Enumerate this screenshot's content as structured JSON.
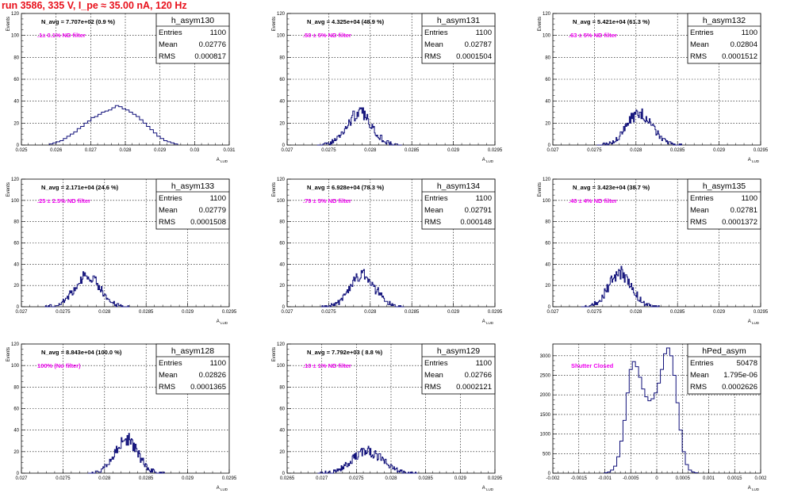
{
  "page": {
    "run_title": "run 3586,   335 V, I_pe ≈ 35.00 nA, 120 Hz"
  },
  "colors": {
    "histogram_line": "#10107a",
    "filter_label": "#ee00ee",
    "run_title": "#e8101b",
    "grid": "#000000"
  },
  "chart_data": [
    {
      "type": "bar",
      "title": "h_asym130",
      "xlabel": "A_LUD",
      "ylabel": "Events",
      "nominal_x": 0.02776,
      "xlim": [
        0.025,
        0.031
      ],
      "xticks": [
        0.025,
        0.026,
        0.027,
        0.028,
        0.029,
        0.03,
        0.031
      ],
      "xticklabels": [
        "0.025",
        "0.026",
        "0.027",
        "0.028",
        "0.029",
        "0.03",
        "0.031"
      ],
      "ylim": [
        0,
        120
      ],
      "yticks": [
        0,
        20,
        40,
        60,
        80,
        100,
        120
      ],
      "grid": true,
      "navg": "N_avg = 7.707e+02 (0.9 %)",
      "filter": ".1± 0.1% ND filter",
      "stats": {
        "entries": "1100",
        "mean": "0.02776",
        "rms": "0.000817"
      },
      "bins": [
        {
          "x": 0.02586,
          "y": 1
        },
        {
          "x": 0.02596,
          "y": 2
        },
        {
          "x": 0.02606,
          "y": 3
        },
        {
          "x": 0.02616,
          "y": 4
        },
        {
          "x": 0.02626,
          "y": 6
        },
        {
          "x": 0.02636,
          "y": 8
        },
        {
          "x": 0.02646,
          "y": 10
        },
        {
          "x": 0.02656,
          "y": 12
        },
        {
          "x": 0.02666,
          "y": 15
        },
        {
          "x": 0.02676,
          "y": 17
        },
        {
          "x": 0.02686,
          "y": 20
        },
        {
          "x": 0.02696,
          "y": 22
        },
        {
          "x": 0.02706,
          "y": 25
        },
        {
          "x": 0.02716,
          "y": 26
        },
        {
          "x": 0.02726,
          "y": 28
        },
        {
          "x": 0.02736,
          "y": 30
        },
        {
          "x": 0.02746,
          "y": 31
        },
        {
          "x": 0.02756,
          "y": 32
        },
        {
          "x": 0.02766,
          "y": 34
        },
        {
          "x": 0.02776,
          "y": 36
        },
        {
          "x": 0.02786,
          "y": 35
        },
        {
          "x": 0.02796,
          "y": 33
        },
        {
          "x": 0.02806,
          "y": 32
        },
        {
          "x": 0.02816,
          "y": 30
        },
        {
          "x": 0.02826,
          "y": 28
        },
        {
          "x": 0.02836,
          "y": 26
        },
        {
          "x": 0.02846,
          "y": 23
        },
        {
          "x": 0.02856,
          "y": 20
        },
        {
          "x": 0.02866,
          "y": 17
        },
        {
          "x": 0.02876,
          "y": 14
        },
        {
          "x": 0.02886,
          "y": 11
        },
        {
          "x": 0.02896,
          "y": 8
        },
        {
          "x": 0.02906,
          "y": 6
        },
        {
          "x": 0.02916,
          "y": 4
        },
        {
          "x": 0.02926,
          "y": 3
        },
        {
          "x": 0.02936,
          "y": 2
        },
        {
          "x": 0.02946,
          "y": 1
        }
      ]
    },
    {
      "type": "bar",
      "title": "h_asym131",
      "xlabel": "A_LUD",
      "ylabel": "Events",
      "nominal_x": 0.02787,
      "xlim": [
        0.027,
        0.0295
      ],
      "xticks": [
        0.027,
        0.0275,
        0.028,
        0.0285,
        0.029,
        0.0295
      ],
      "xticklabels": [
        "0.027",
        "0.0275",
        "0.028",
        "0.0285",
        "0.029",
        "0.0295"
      ],
      "ylim": [
        0,
        120
      ],
      "yticks": [
        0,
        20,
        40,
        60,
        80,
        100,
        120
      ],
      "grid": true,
      "navg": "N_avg = 4.325e+04 (48.9 %)",
      "filter": ".50 ± 5% ND filter",
      "stats": {
        "entries": "1100",
        "mean": "0.02787",
        "rms": "0.0001504"
      }
    },
    {
      "type": "bar",
      "title": "h_asym132",
      "xlabel": "A_LUD",
      "ylabel": "Events",
      "nominal_x": 0.02804,
      "xlim": [
        0.027,
        0.0295
      ],
      "xticks": [
        0.027,
        0.0275,
        0.028,
        0.0285,
        0.029,
        0.0295
      ],
      "xticklabels": [
        "0.027",
        "0.0275",
        "0.028",
        "0.0285",
        "0.029",
        "0.0295"
      ],
      "ylim": [
        0,
        120
      ],
      "yticks": [
        0,
        20,
        40,
        60,
        80,
        100,
        120
      ],
      "grid": true,
      "navg": "N_avg = 5.421e+04 (61.3 %)",
      "filter": ".63 ± 5% ND filter",
      "stats": {
        "entries": "1100",
        "mean": "0.02804",
        "rms": "0.0001512"
      }
    },
    {
      "type": "bar",
      "title": "h_asym133",
      "xlabel": "A_LUD",
      "ylabel": "Events",
      "nominal_x": 0.02779,
      "xlim": [
        0.027,
        0.0295
      ],
      "xticks": [
        0.027,
        0.0275,
        0.028,
        0.0285,
        0.029,
        0.0295
      ],
      "xticklabels": [
        "0.027",
        "0.0275",
        "0.028",
        "0.0285",
        "0.029",
        "0.0295"
      ],
      "ylim": [
        0,
        120
      ],
      "yticks": [
        0,
        20,
        40,
        60,
        80,
        100,
        120
      ],
      "grid": true,
      "navg": "N_avg = 2.171e+04 (24.6 %)",
      "filter": ".25 ± 2.5% ND filter",
      "stats": {
        "entries": "1100",
        "mean": "0.02779",
        "rms": "0.0001508"
      }
    },
    {
      "type": "bar",
      "title": "h_asym134",
      "xlabel": "A_LUD",
      "ylabel": "Events",
      "nominal_x": 0.02791,
      "xlim": [
        0.027,
        0.0295
      ],
      "xticks": [
        0.027,
        0.0275,
        0.028,
        0.0285,
        0.029,
        0.0295
      ],
      "xticklabels": [
        "0.027",
        "0.0275",
        "0.028",
        "0.0285",
        "0.029",
        "0.0295"
      ],
      "ylim": [
        0,
        120
      ],
      "yticks": [
        0,
        20,
        40,
        60,
        80,
        100,
        120
      ],
      "grid": true,
      "navg": "N_avg = 6.928e+04 (78.3 %)",
      "filter": ".79 ± 5% ND filter",
      "stats": {
        "entries": "1100",
        "mean": "0.02791",
        "rms": "0.000148"
      }
    },
    {
      "type": "bar",
      "title": "h_asym135",
      "xlabel": "A_LUD",
      "ylabel": "Events",
      "nominal_x": 0.02781,
      "xlim": [
        0.027,
        0.0295
      ],
      "xticks": [
        0.027,
        0.0275,
        0.028,
        0.0285,
        0.029,
        0.0295
      ],
      "xticklabels": [
        "0.027",
        "0.0275",
        "0.028",
        "0.0285",
        "0.029",
        "0.0295"
      ],
      "ylim": [
        0,
        120
      ],
      "yticks": [
        0,
        20,
        40,
        60,
        80,
        100,
        120
      ],
      "grid": true,
      "navg": "N_avg = 3.423e+04 (38.7 %)",
      "filter": ".40 ± 4% ND filter",
      "stats": {
        "entries": "1100",
        "mean": "0.02781",
        "rms": "0.0001372"
      }
    },
    {
      "type": "bar",
      "title": "h_asym128",
      "xlabel": "A_LUD",
      "ylabel": "Events",
      "nominal_x": 0.02826,
      "xlim": [
        0.027,
        0.0295
      ],
      "xticks": [
        0.027,
        0.0275,
        0.028,
        0.0285,
        0.029,
        0.0295
      ],
      "xticklabels": [
        "0.027",
        "0.0275",
        "0.028",
        "0.0285",
        "0.029",
        "0.0295"
      ],
      "ylim": [
        0,
        120
      ],
      "yticks": [
        0,
        20,
        40,
        60,
        80,
        100,
        120
      ],
      "grid": true,
      "navg": "N_avg = 8.843e+04 (100.0 %)",
      "filter": "100% (No filter)",
      "stats": {
        "entries": "1100",
        "mean": "0.02826",
        "rms": "0.0001365"
      }
    },
    {
      "type": "bar",
      "title": "h_asym129",
      "xlabel": "A_LUD",
      "ylabel": "Events",
      "nominal_x": 0.02766,
      "xlim": [
        0.0265,
        0.0295
      ],
      "xticks": [
        0.0265,
        0.027,
        0.0275,
        0.028,
        0.0285,
        0.029,
        0.0295
      ],
      "xticklabels": [
        "0.0265",
        "0.027",
        "0.0275",
        "0.028",
        "0.0285",
        "0.029",
        "0.0295"
      ],
      "ylim": [
        0,
        120
      ],
      "yticks": [
        0,
        20,
        40,
        60,
        80,
        100,
        120
      ],
      "grid": true,
      "navg": "N_avg = 7.792e+03 ( 8.8 %)",
      "filter": ".10 ± 1% ND filter",
      "stats": {
        "entries": "1100",
        "mean": "0.02766",
        "rms": "0.0002121"
      }
    },
    {
      "type": "bar",
      "title": "hPed_asym",
      "xlabel": "A_LUD",
      "ylabel": "",
      "xlim": [
        -0.002,
        0.002
      ],
      "xticks": [
        -0.002,
        -0.0015,
        -0.001,
        -0.0005,
        0,
        0.0005,
        0.001,
        0.0015,
        0.002
      ],
      "xticklabels": [
        "-0.002",
        "-0.0015",
        "-0.001",
        "-0.0005",
        "0",
        "0.0005",
        "0.001",
        "0.0015",
        "0.002"
      ],
      "ylim": [
        0,
        3300
      ],
      "yticks": [
        0,
        500,
        1000,
        1500,
        2000,
        2500,
        3000
      ],
      "grid": true,
      "filter": "Shutter Closed",
      "stats": {
        "entries": "50478",
        "mean": "1.795e-06",
        "rms": "0.0002626"
      },
      "bins": [
        {
          "x": -0.00098,
          "y": 10
        },
        {
          "x": -0.00092,
          "y": 30
        },
        {
          "x": -0.00086,
          "y": 80
        },
        {
          "x": -0.0008,
          "y": 180
        },
        {
          "x": -0.00074,
          "y": 420
        },
        {
          "x": -0.00068,
          "y": 820
        },
        {
          "x": -0.00062,
          "y": 1350
        },
        {
          "x": -0.00056,
          "y": 2050
        },
        {
          "x": -0.0005,
          "y": 2650
        },
        {
          "x": -0.00044,
          "y": 2850
        },
        {
          "x": -0.00038,
          "y": 2720
        },
        {
          "x": -0.00032,
          "y": 2450
        },
        {
          "x": -0.00026,
          "y": 2150
        },
        {
          "x": -0.0002,
          "y": 1950
        },
        {
          "x": -0.00014,
          "y": 1850
        },
        {
          "x": -8e-05,
          "y": 1900
        },
        {
          "x": -2e-05,
          "y": 2050
        },
        {
          "x": 4e-05,
          "y": 2300
        },
        {
          "x": 0.0001,
          "y": 2650
        },
        {
          "x": 0.00016,
          "y": 3050
        },
        {
          "x": 0.00022,
          "y": 3200
        },
        {
          "x": 0.00028,
          "y": 3000
        },
        {
          "x": 0.00034,
          "y": 2500
        },
        {
          "x": 0.0004,
          "y": 1800
        },
        {
          "x": 0.00046,
          "y": 1100
        },
        {
          "x": 0.00052,
          "y": 550
        },
        {
          "x": 0.00058,
          "y": 220
        },
        {
          "x": 0.00064,
          "y": 80
        },
        {
          "x": 0.0007,
          "y": 30
        },
        {
          "x": 0.00076,
          "y": 10
        }
      ]
    }
  ]
}
